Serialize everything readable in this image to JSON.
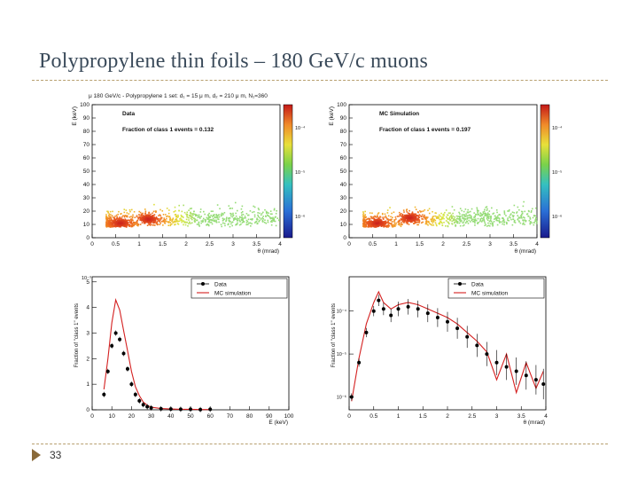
{
  "slide": {
    "title": "Polypropylene thin foils – 180 GeV/c muons",
    "page_number": "33"
  },
  "colors": {
    "data": "#000000",
    "mc": "#d42020",
    "accent": "#8a6a3a"
  },
  "chart_data": [
    {
      "id": "data-2d",
      "type": "heatmap",
      "title": "μ 180 GeV/c - Polypropylene 1 set: d₁ = 15 μ m, d₂ = 210 μ m, N₁=360",
      "label": "Data",
      "fraction_text": "Fraction of class 1 events = 0.132",
      "xlabel": "θ (mrad)",
      "ylabel": "E (keV)",
      "xlim": [
        0,
        4
      ],
      "ylim": [
        0,
        100
      ],
      "xticks": [
        "0",
        "0.5",
        "1",
        "1.5",
        "2",
        "2.5",
        "3",
        "3.5",
        "4"
      ],
      "yticks": [
        "0",
        "10",
        "20",
        "30",
        "40",
        "50",
        "60",
        "70",
        "80",
        "90",
        "100"
      ],
      "colorbar_ticks": [
        "10⁻⁴",
        "10⁻⁵",
        "10⁻⁶"
      ],
      "hotspots": [
        {
          "theta": 0.6,
          "E": 11
        },
        {
          "theta": 1.2,
          "E": 14
        }
      ]
    },
    {
      "id": "mc-2d",
      "type": "heatmap",
      "label": "MC Simulation",
      "fraction_text": "Fraction of class 1 events = 0.197",
      "xlabel": "θ (mrad)",
      "ylabel": "E (keV)",
      "xlim": [
        0,
        4
      ],
      "ylim": [
        0,
        100
      ],
      "xticks": [
        "0",
        "0.5",
        "1",
        "1.5",
        "2",
        "2.5",
        "3",
        "3.5",
        "4"
      ],
      "yticks": [
        "0",
        "10",
        "20",
        "30",
        "40",
        "50",
        "60",
        "70",
        "80",
        "90",
        "100"
      ],
      "colorbar_ticks": [
        "10⁻⁴",
        "10⁻⁵",
        "10⁻⁶"
      ],
      "hotspots": [
        {
          "theta": 0.6,
          "E": 11
        },
        {
          "theta": 1.3,
          "E": 15
        }
      ]
    },
    {
      "id": "energy-1d",
      "type": "line",
      "xlabel": "E (keV)",
      "ylabel": "Fraction of \"class 1\" events",
      "exponent_label": "10⁻³",
      "xlim": [
        0,
        100
      ],
      "ylim": [
        0,
        5.2
      ],
      "xticks": [
        "0",
        "10",
        "20",
        "30",
        "40",
        "50",
        "60",
        "70",
        "80",
        "90",
        "100"
      ],
      "yticks": [
        "0",
        "1",
        "2",
        "3",
        "4",
        "5"
      ],
      "legend": [
        "Data",
        "MC simulation"
      ],
      "x": [
        6,
        8,
        10,
        12,
        14,
        16,
        18,
        20,
        22,
        24,
        26,
        28,
        30,
        35,
        40,
        45,
        50,
        55,
        60
      ],
      "series": [
        {
          "name": "Data",
          "values": [
            0.6,
            1.5,
            2.5,
            3.0,
            2.75,
            2.2,
            1.6,
            1.0,
            0.6,
            0.35,
            0.2,
            0.12,
            0.08,
            0.04,
            0.03,
            0.02,
            0.02,
            0.01,
            0.02
          ]
        },
        {
          "name": "MC simulation",
          "values": [
            0.8,
            2.0,
            3.4,
            4.3,
            3.9,
            3.1,
            2.3,
            1.5,
            0.9,
            0.55,
            0.3,
            0.18,
            0.1,
            0.05,
            0.03,
            0.02,
            0.02,
            0.01,
            0.01
          ]
        }
      ]
    },
    {
      "id": "theta-1d",
      "type": "line",
      "xlabel": "θ (mrad)",
      "ylabel": "Fraction of \"class 1\" events",
      "xlim": [
        0,
        4
      ],
      "xticks": [
        "0",
        "0.5",
        "1",
        "1.5",
        "2",
        "2.5",
        "3",
        "3.5",
        "4"
      ],
      "yticks": [
        "10⁻⁴",
        "10⁻⁵",
        "10⁻⁶"
      ],
      "legend": [
        "Data",
        "MC simulation"
      ],
      "x": [
        0.05,
        0.2,
        0.35,
        0.5,
        0.6,
        0.7,
        0.85,
        1.0,
        1.2,
        1.4,
        1.6,
        1.8,
        2.0,
        2.2,
        2.4,
        2.6,
        2.8,
        3.0,
        3.2,
        3.4,
        3.6,
        3.8,
        3.95
      ],
      "series": [
        {
          "name": "Data",
          "values": [
            -6.0,
            -5.2,
            -4.5,
            -4.0,
            -3.75,
            -3.95,
            -4.1,
            -3.95,
            -3.9,
            -3.95,
            -4.05,
            -4.15,
            -4.25,
            -4.4,
            -4.6,
            -4.8,
            -5.0,
            -5.2,
            -5.3,
            -5.4,
            -5.5,
            -5.6,
            -5.7
          ]
        },
        {
          "name": "MC simulation",
          "values": [
            -6.1,
            -5.1,
            -4.3,
            -3.8,
            -3.55,
            -3.8,
            -3.95,
            -3.85,
            -3.8,
            -3.85,
            -3.95,
            -4.05,
            -4.15,
            -4.3,
            -4.5,
            -4.7,
            -4.95,
            -5.6,
            -5.0,
            -5.9,
            -5.2,
            -5.8,
            -5.4
          ]
        }
      ]
    }
  ]
}
